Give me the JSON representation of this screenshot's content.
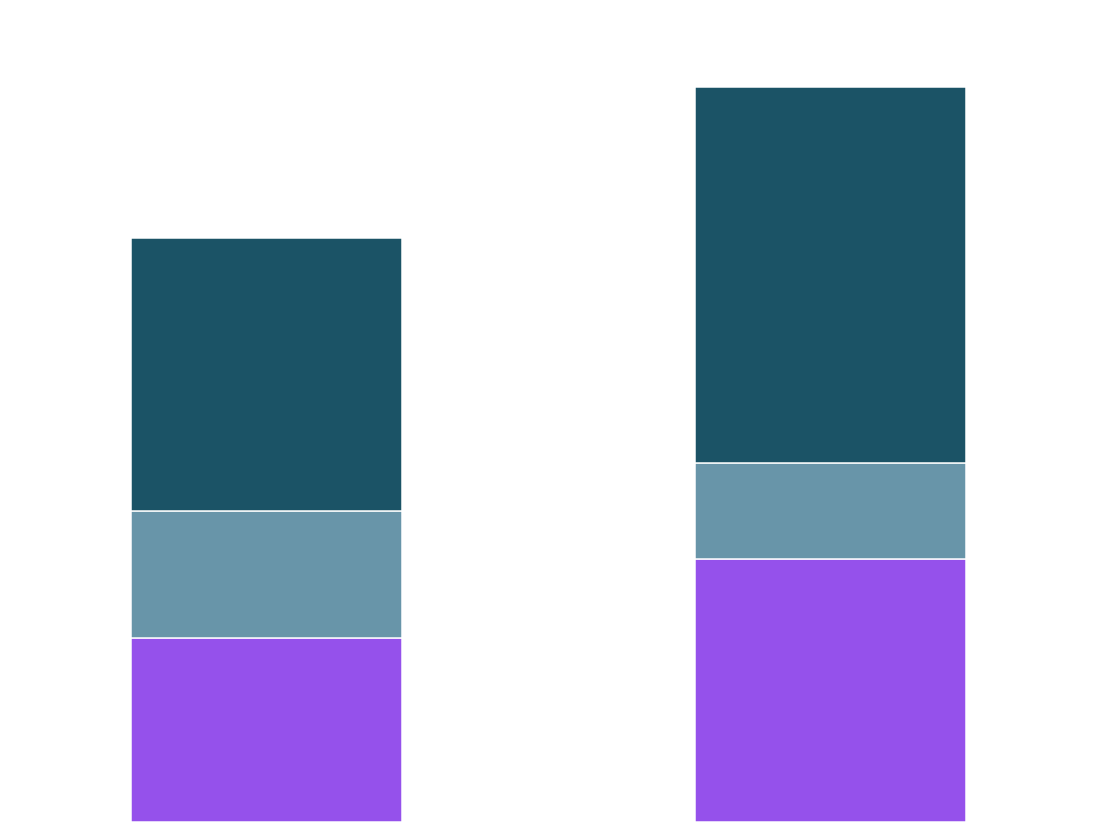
{
  "chart_data": {
    "type": "bar",
    "stacked": true,
    "title": "",
    "xlabel": "",
    "ylabel": "",
    "grid": false,
    "legend": "none",
    "categories": [
      "",
      ""
    ],
    "series": [
      {
        "color": "#9551eb",
        "values": [
          18.4,
          26.3
        ]
      },
      {
        "color": "#6895a9",
        "values": [
          12.7,
          9.6
        ]
      },
      {
        "color": "#1b5366",
        "values": [
          27.3,
          37.6
        ]
      }
    ],
    "ylim": [
      0,
      73.5
    ]
  }
}
